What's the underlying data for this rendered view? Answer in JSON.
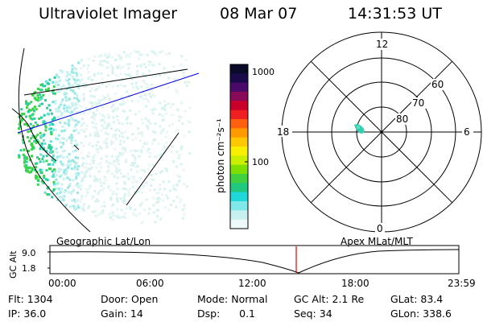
{
  "header": {
    "title": "Ultraviolet Imager",
    "date": "08 Mar 07",
    "time": "14:31:53 UT"
  },
  "colorbar": {
    "label": "photon cm⁻²s⁻¹",
    "tick_labels": [
      "1000",
      "100"
    ],
    "colors": [
      "#0a0a2a",
      "#1a0a4a",
      "#4a0a6a",
      "#8a0a5a",
      "#c8002a",
      "#f02020",
      "#ff6010",
      "#ff9a00",
      "#ffc800",
      "#f8f000",
      "#c8f000",
      "#7ee000",
      "#40d040",
      "#20c880",
      "#20d8d8",
      "#80e8e8",
      "#c8f0f0",
      "#eef8f8"
    ]
  },
  "polar_plot": {
    "mlt_labels": [
      "12",
      "18",
      "6",
      "0"
    ],
    "lat_labels": [
      "60",
      "70",
      "80"
    ]
  },
  "footprint": {
    "left_label": "Geographic Lat/Lon",
    "right_label": "Apex MLat/MLT",
    "axis_title": "GC Alt",
    "y_ticks": [
      "9.0",
      "1.8"
    ],
    "x_ticks": [
      "00:00",
      "06:00",
      "12:00",
      "18:00",
      "23:59"
    ],
    "marker_color": "#e00000"
  },
  "status": {
    "flt": "Flt: 1304",
    "ip": "IP: 36.0",
    "door": "Door: Open",
    "gain": "Gain: 14",
    "mode": "Mode: Normal",
    "dsp": "Dsp:      0.1",
    "gc_alt": "GC Alt: 2.1 Re",
    "seq": "Seq: 34",
    "glat": "GLat: 83.4",
    "glon": "GLon: 338.6"
  }
}
